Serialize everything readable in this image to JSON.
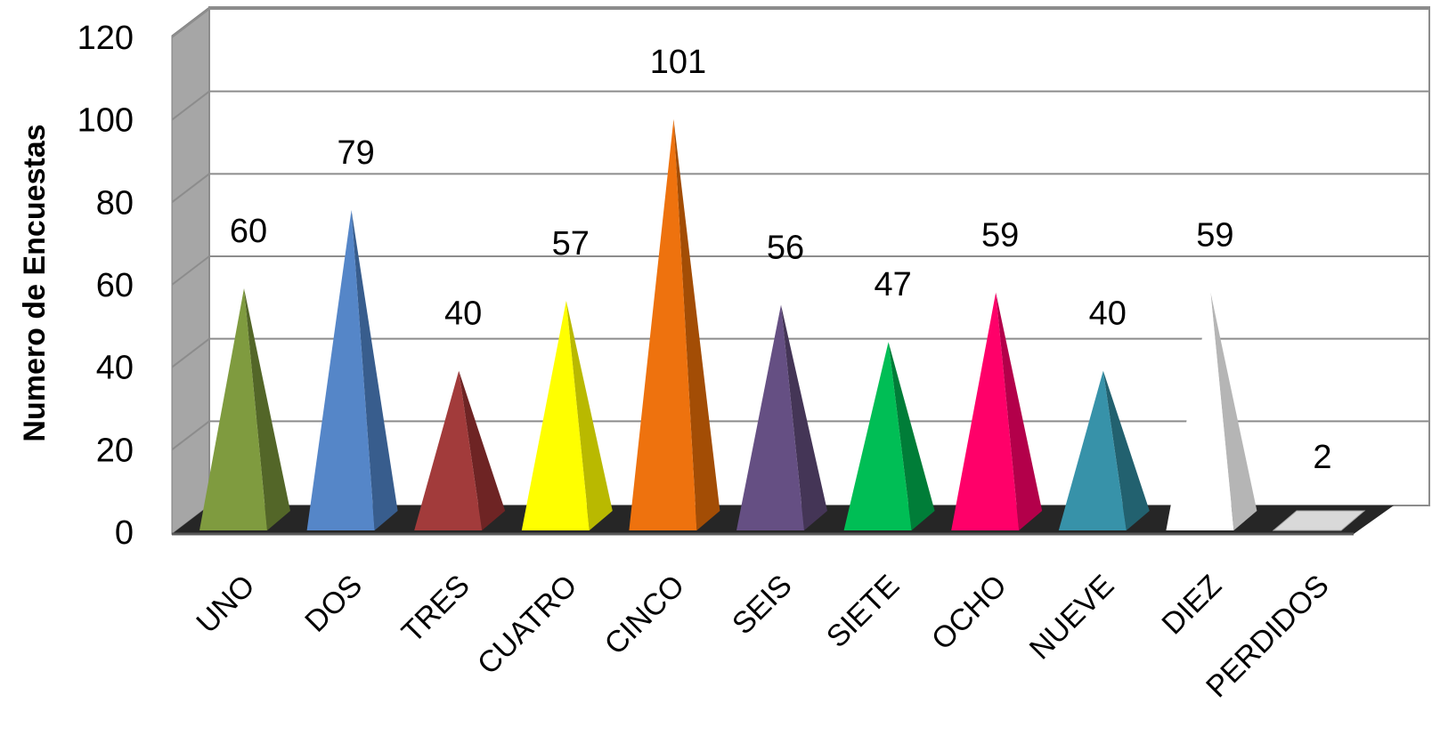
{
  "chart_data": {
    "type": "bar",
    "style": "3d-pyramid",
    "title": "",
    "xlabel": "",
    "ylabel": "Numero de Encuestas",
    "ylim": [
      0,
      120
    ],
    "yticks": [
      0,
      20,
      40,
      60,
      80,
      100,
      120
    ],
    "grid": true,
    "legend": "none",
    "categories": [
      "UNO",
      "DOS",
      "TRES",
      "CUATRO",
      "CINCO",
      "SEIS",
      "SIETE",
      "OCHO",
      "NUEVE",
      "DIEZ",
      "PERDIDOS"
    ],
    "values": [
      60,
      79,
      40,
      57,
      101,
      56,
      47,
      59,
      40,
      59,
      2
    ],
    "colors": [
      "#7F9B3F",
      "#5586C8",
      "#A23B3B",
      "#FFFF00",
      "#EE720E",
      "#654F83",
      "#00BE55",
      "#FF0069",
      "#3792A9",
      "#FFFFFF",
      "#FFFFFF"
    ],
    "shade_colors": [
      "#536628",
      "#385D8D",
      "#6E2424",
      "#B9B900",
      "#A34D05",
      "#443556",
      "#007D38",
      "#B3004A",
      "#22616F",
      "#B5B5B5",
      "#B5B5B5"
    ]
  }
}
